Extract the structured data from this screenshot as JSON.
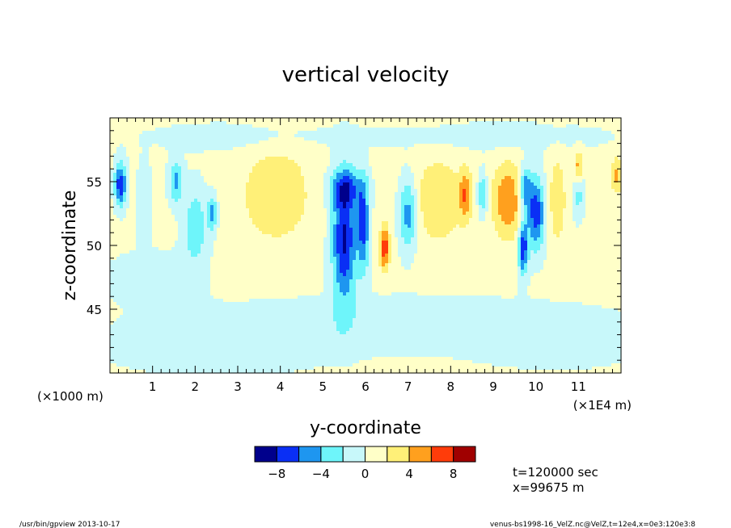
{
  "chart_data": {
    "type": "heatmap",
    "title": "vertical velocity",
    "xlabel": "y-coordinate",
    "ylabel": "z-coordinate",
    "x_unit_left": "(×1000 m)",
    "x_unit_right": "(×1E4 m)",
    "xlim": [
      0,
      12
    ],
    "ylim": [
      40,
      60
    ],
    "x_ticks": [
      1,
      2,
      3,
      4,
      5,
      6,
      7,
      8,
      9,
      10,
      11
    ],
    "x_tick_labels": [
      "1",
      "2",
      "3",
      "4",
      "5",
      "6",
      "7",
      "8",
      "9",
      "10",
      "11"
    ],
    "y_ticks": [
      45,
      50,
      55
    ],
    "y_tick_labels": [
      "45",
      "50",
      "55"
    ],
    "colorbar": {
      "levels": [
        -10,
        -8,
        -6,
        -4,
        -2,
        0,
        2,
        4,
        6,
        8,
        10
      ],
      "colors": [
        "#00008c",
        "#0a2ff5",
        "#1e96f0",
        "#6ef5fa",
        "#c8f8fa",
        "#ffffc8",
        "#fff078",
        "#ffa01e",
        "#ff3c0a",
        "#a00000"
      ],
      "tick_values": [
        -8,
        -4,
        0,
        4,
        8
      ],
      "tick_labels": [
        "−8",
        "−4",
        "0",
        "4",
        "8"
      ]
    },
    "background_level": 0.5,
    "features": [
      {
        "y": 0.25,
        "z": 54.8,
        "sy": 0.1,
        "sz": 1.2,
        "w": -8
      },
      {
        "y": 0.8,
        "z": 53.5,
        "sy": 0.12,
        "sz": 2.0,
        "w": -2.5
      },
      {
        "y": 1.55,
        "z": 55.0,
        "sy": 0.12,
        "sz": 1.2,
        "w": -5
      },
      {
        "y": 2.0,
        "z": 51.5,
        "sy": 0.2,
        "sz": 2.2,
        "w": -4
      },
      {
        "y": 2.4,
        "z": 52.5,
        "sy": 0.08,
        "sz": 1.0,
        "w": -5
      },
      {
        "y": 3.9,
        "z": 54.0,
        "sy": 0.6,
        "sz": 2.8,
        "w": 3
      },
      {
        "y": 5.5,
        "z": 50.5,
        "sy": 0.2,
        "sz": 3.5,
        "w": -9
      },
      {
        "y": 5.55,
        "z": 54.5,
        "sy": 0.3,
        "sz": 1.0,
        "w": -5
      },
      {
        "y": 5.95,
        "z": 51.5,
        "sy": 0.1,
        "sz": 2.5,
        "w": -7
      },
      {
        "y": 6.45,
        "z": 49.8,
        "sy": 0.08,
        "sz": 1.2,
        "w": 7
      },
      {
        "y": 7.0,
        "z": 52.5,
        "sy": 0.15,
        "sz": 2.0,
        "w": -6
      },
      {
        "y": 7.7,
        "z": 53.5,
        "sy": 0.45,
        "sz": 2.5,
        "w": 3
      },
      {
        "y": 8.35,
        "z": 54.0,
        "sy": 0.1,
        "sz": 1.3,
        "w": 5
      },
      {
        "y": 8.75,
        "z": 54.0,
        "sy": 0.08,
        "sz": 1.2,
        "w": -5
      },
      {
        "y": 9.35,
        "z": 53.5,
        "sy": 0.25,
        "sz": 2.0,
        "w": 5.5
      },
      {
        "y": 9.7,
        "z": 49.8,
        "sy": 0.08,
        "sz": 1.5,
        "w": -8
      },
      {
        "y": 9.75,
        "z": 54.5,
        "sy": 0.1,
        "sz": 1.2,
        "w": -6
      },
      {
        "y": 10.0,
        "z": 52.5,
        "sy": 0.15,
        "sz": 2.0,
        "w": -8
      },
      {
        "y": 10.5,
        "z": 53.5,
        "sy": 0.15,
        "sz": 2.5,
        "w": 3
      },
      {
        "y": 11.0,
        "z": 56.0,
        "sy": 0.08,
        "sz": 1.0,
        "w": 6
      },
      {
        "y": 11.0,
        "z": 54.5,
        "sy": 0.1,
        "sz": 1.5,
        "w": -4
      },
      {
        "y": 11.9,
        "z": 55.5,
        "sy": 0.1,
        "sz": 1.0,
        "w": 4
      },
      {
        "y": 3.0,
        "z": 58.5,
        "sy": 1.5,
        "sz": 0.8,
        "w": -1.5
      },
      {
        "y": 9.0,
        "z": 58.5,
        "sy": 2.0,
        "sz": 0.8,
        "w": -1.5
      },
      {
        "y": 1.0,
        "z": 47.5,
        "sy": 0.8,
        "sz": 1.5,
        "w": -1.5
      },
      {
        "y": 6.5,
        "z": 44.0,
        "sy": 3.0,
        "sz": 1.5,
        "w": -1.5
      },
      {
        "y": 2.5,
        "z": 42.0,
        "sy": 2.0,
        "sz": 1.5,
        "w": -1.5
      },
      {
        "y": 10.5,
        "z": 42.5,
        "sy": 1.5,
        "sz": 1.5,
        "w": -1.5
      }
    ],
    "info_lines": [
      "t=120000 sec",
      "x=99675 m"
    ]
  },
  "footer": {
    "left": "/usr/bin/gpview  2013-10-17",
    "right": "venus-bs1998-16_VelZ.nc@VelZ,t=12e4,x=0e3:120e3:8"
  }
}
